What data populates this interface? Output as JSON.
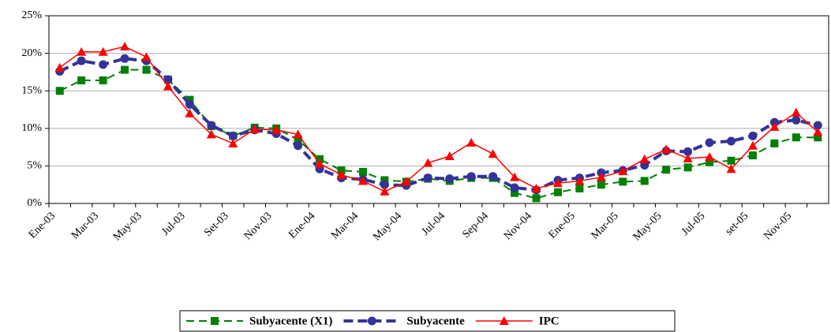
{
  "chart_data": {
    "type": "line",
    "categories": [
      "Ene-03",
      null,
      "Mar-03",
      null,
      "May-03",
      null,
      "Jul-03",
      null,
      "Set-03",
      null,
      "Nov-03",
      null,
      "Ene-04",
      null,
      "Mar-04",
      null,
      "May-04",
      null,
      "Jul-04",
      null,
      "Sep-04",
      null,
      "Nov-04",
      null,
      "Ene-05",
      null,
      "Mar-05",
      null,
      "May-05",
      null,
      "Jul-05",
      null,
      "set-05",
      null,
      "Nov-05",
      null
    ],
    "series": [
      {
        "name": "Subyacente (X1)",
        "color": "#008000",
        "dashed": true,
        "marker": "square",
        "values": [
          15.0,
          16.4,
          16.4,
          17.8,
          17.8,
          16.5,
          13.8,
          10.3,
          9.0,
          10.1,
          10.0,
          8.5,
          5.9,
          4.4,
          4.2,
          3.1,
          2.9,
          3.3,
          3.0,
          3.4,
          3.4,
          1.4,
          0.7,
          1.5,
          2.0,
          2.5,
          2.9,
          3.0,
          4.5,
          4.8,
          5.5,
          5.7,
          6.4,
          8.0,
          8.8,
          8.8
        ]
      },
      {
        "name": "Subyacente",
        "color": "#333399",
        "dashed": true,
        "marker": "circle",
        "values": [
          17.6,
          19.0,
          18.5,
          19.3,
          19.0,
          16.5,
          13.2,
          10.4,
          9.0,
          9.8,
          9.3,
          7.7,
          4.6,
          3.4,
          3.2,
          2.5,
          2.4,
          3.4,
          3.3,
          3.6,
          3.6,
          2.1,
          1.8,
          3.1,
          3.4,
          4.1,
          4.4,
          5.1,
          7.0,
          6.9,
          8.1,
          8.3,
          9.0,
          10.8,
          11.1,
          10.4
        ]
      },
      {
        "name": "IPC",
        "color": "#ff0000",
        "dashed": false,
        "marker": "triangle",
        "values": [
          18.1,
          20.2,
          20.2,
          20.9,
          19.5,
          15.6,
          12.0,
          9.2,
          8.0,
          9.9,
          9.8,
          9.2,
          5.3,
          3.8,
          3.0,
          1.6,
          2.9,
          5.4,
          6.3,
          8.1,
          6.6,
          3.5,
          2.0,
          2.7,
          3.0,
          3.5,
          4.3,
          5.9,
          7.2,
          6.0,
          6.2,
          4.6,
          7.7,
          10.2,
          12.1,
          9.5
        ]
      }
    ],
    "ylim": [
      0,
      25
    ],
    "yticks": [
      {
        "value": 0,
        "label": "0%"
      },
      {
        "value": 5,
        "label": "5%"
      },
      {
        "value": 10,
        "label": "10%"
      },
      {
        "value": 15,
        "label": "15%"
      },
      {
        "value": 20,
        "label": "20%"
      },
      {
        "value": 25,
        "label": "25%"
      }
    ],
    "grid": true,
    "legend": "bottom"
  }
}
